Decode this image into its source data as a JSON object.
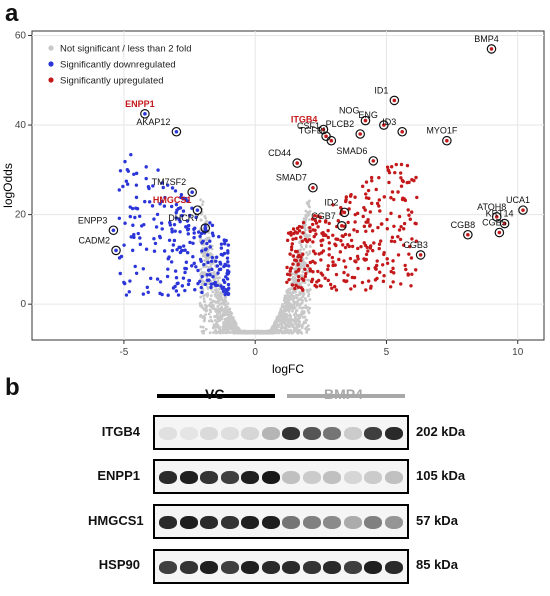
{
  "panels": {
    "a": "a",
    "b": "b"
  },
  "chart_data": {
    "type": "scatter",
    "xlabel": "logFC",
    "ylabel": "logOdds",
    "xlim": [
      -8.5,
      11
    ],
    "ylim": [
      -8,
      61
    ],
    "xticks": [
      -5,
      0,
      5,
      10
    ],
    "yticks": [
      0,
      20,
      40,
      60
    ],
    "grid": true,
    "legend_position": "top-left",
    "legend": [
      {
        "label": "Not significant / less than 2 fold",
        "color": "#c8c8c8"
      },
      {
        "label": "Significantly downregulated",
        "color": "#2b35d8"
      },
      {
        "label": "Significantly upregulated",
        "color": "#c4191b"
      }
    ],
    "labeled_points": [
      {
        "name": "BMP4",
        "x": 9.0,
        "y": 57,
        "highlight": false
      },
      {
        "name": "ID1",
        "x": 5.3,
        "y": 45.5,
        "highlight": false
      },
      {
        "name": "NOG",
        "x": 4.2,
        "y": 41,
        "highlight": false
      },
      {
        "name": "ENG",
        "x": 4.9,
        "y": 40,
        "highlight": false
      },
      {
        "name": "ID3",
        "x": 5.6,
        "y": 38.5,
        "highlight": false
      },
      {
        "name": "PLCB2",
        "x": 4.0,
        "y": 38,
        "highlight": false
      },
      {
        "name": "ITGB4",
        "x": 2.6,
        "y": 39,
        "highlight": true
      },
      {
        "name": "CSF1",
        "x": 2.7,
        "y": 37.5,
        "highlight": false
      },
      {
        "name": "TGFBI",
        "x": 2.9,
        "y": 36.5,
        "highlight": false
      },
      {
        "name": "MYO1F",
        "x": 7.3,
        "y": 36.5,
        "highlight": false
      },
      {
        "name": "SMAD6",
        "x": 4.5,
        "y": 32,
        "highlight": false
      },
      {
        "name": "CD44",
        "x": 1.6,
        "y": 31.5,
        "highlight": false
      },
      {
        "name": "SMAD7",
        "x": 2.2,
        "y": 26,
        "highlight": false
      },
      {
        "name": "ID2",
        "x": 3.4,
        "y": 20.5,
        "highlight": false
      },
      {
        "name": "CGB7",
        "x": 3.3,
        "y": 17.5,
        "highlight": false
      },
      {
        "name": "CGB8",
        "x": 8.1,
        "y": 15.5,
        "highlight": false
      },
      {
        "name": "ATOH8",
        "x": 9.2,
        "y": 19.5,
        "highlight": false
      },
      {
        "name": "KRT14",
        "x": 9.5,
        "y": 18,
        "highlight": false
      },
      {
        "name": "CGB5",
        "x": 9.3,
        "y": 16,
        "highlight": false
      },
      {
        "name": "UCA1",
        "x": 10.2,
        "y": 21,
        "highlight": false
      },
      {
        "name": "CGB3",
        "x": 6.3,
        "y": 11,
        "highlight": false
      },
      {
        "name": "ENPP1",
        "x": -4.2,
        "y": 42.5,
        "highlight": true
      },
      {
        "name": "AKAP12",
        "x": -3.0,
        "y": 38.5,
        "highlight": false
      },
      {
        "name": "TM7SF2",
        "x": -2.4,
        "y": 25,
        "highlight": false
      },
      {
        "name": "HMGCS1",
        "x": -2.2,
        "y": 21,
        "highlight": true
      },
      {
        "name": "DHCR7",
        "x": -1.9,
        "y": 17,
        "highlight": false
      },
      {
        "name": "ENPP3",
        "x": -5.4,
        "y": 16.5,
        "highlight": false
      },
      {
        "name": "CADM2",
        "x": -5.3,
        "y": 12,
        "highlight": false
      }
    ]
  },
  "blot": {
    "groups": [
      {
        "label": "VC",
        "color": "#000000"
      },
      {
        "label": "BMP4",
        "color": "#a8a8a8"
      }
    ],
    "rows": [
      {
        "protein": "ITGB4",
        "kda": "202 kDa",
        "intensities": [
          0.05,
          0.03,
          0.08,
          0.06,
          0.1,
          0.25,
          0.85,
          0.7,
          0.55,
          0.15,
          0.8,
          0.9
        ]
      },
      {
        "protein": "ENPP1",
        "kda": "105 kDa",
        "intensities": [
          0.9,
          0.95,
          0.85,
          0.8,
          0.95,
          0.98,
          0.2,
          0.15,
          0.2,
          0.1,
          0.15,
          0.2
        ]
      },
      {
        "protein": "HMGCS1",
        "kda": "57 kDa",
        "intensities": [
          0.9,
          0.95,
          0.9,
          0.85,
          0.95,
          0.95,
          0.55,
          0.5,
          0.45,
          0.3,
          0.5,
          0.4
        ]
      },
      {
        "protein": "HSP90",
        "kda": "85 kDa",
        "intensities": [
          0.8,
          0.85,
          0.95,
          0.8,
          0.95,
          0.9,
          0.9,
          0.85,
          0.9,
          0.8,
          0.95,
          0.9
        ]
      }
    ]
  }
}
